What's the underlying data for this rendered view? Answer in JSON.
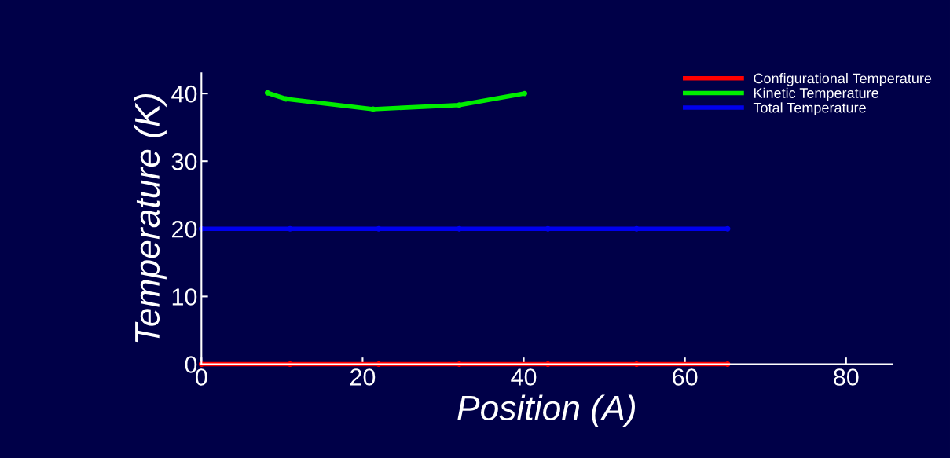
{
  "chart_data": {
    "type": "line",
    "xlabel": "Position (A)",
    "ylabel": "Temperature (K)",
    "xlim": [
      0,
      85.7
    ],
    "xticks": [
      0,
      20,
      40,
      60,
      80
    ],
    "ylim": [
      0,
      43
    ],
    "yticks": [
      0,
      10,
      20,
      30,
      40
    ],
    "grid": false,
    "legend": "top right",
    "marker": "circle",
    "line_style": "solid",
    "series": [
      {
        "name": "Configurational Temperature",
        "color": "#ff0000",
        "x": [
          0,
          11,
          22,
          32,
          43,
          54,
          65.3
        ],
        "values": [
          0,
          0,
          0,
          0,
          0,
          0,
          0
        ]
      },
      {
        "name": "Kinetic Temperature",
        "color": "#00ee00",
        "x": [
          8.2,
          10.5,
          21.3,
          32,
          40.1
        ],
        "values": [
          40.1,
          39.2,
          37.7,
          38.3,
          40.0
        ]
      },
      {
        "name": "Total Temperature",
        "color": "#0000ee",
        "x": [
          0,
          11,
          22,
          32,
          43,
          54,
          65.3
        ],
        "values": [
          20,
          20,
          20,
          20,
          20,
          20,
          20
        ]
      }
    ]
  }
}
